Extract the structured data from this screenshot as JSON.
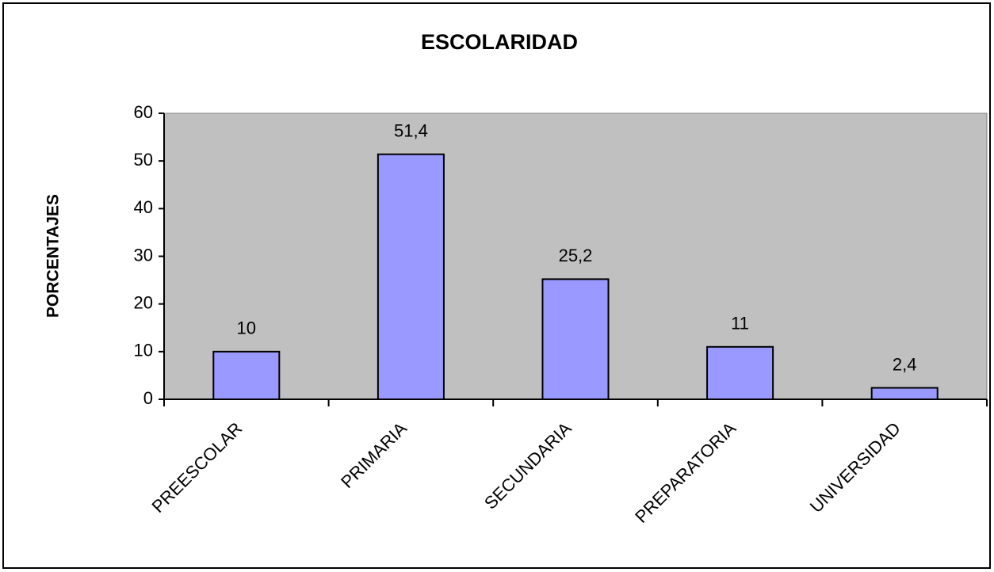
{
  "chart_data": {
    "type": "bar",
    "title": "ESCOLARIDAD",
    "y_label": "PORCENTAJES",
    "categories": [
      "PREESCOLAR",
      "PRIMARIA",
      "SECUNDARIA",
      "PREPARATORIA",
      "UNIVERSIDAD"
    ],
    "values": [
      10,
      51.4,
      25.2,
      11,
      2.4
    ],
    "value_labels": [
      "10",
      "51,4",
      "25,2",
      "11",
      "2,4"
    ],
    "color": "#9999ff",
    "plot_background": "#c0c0c0",
    "ylim": [
      0,
      60
    ],
    "yticks": [
      0,
      10,
      20,
      30,
      40,
      50,
      60
    ],
    "grid": false
  }
}
